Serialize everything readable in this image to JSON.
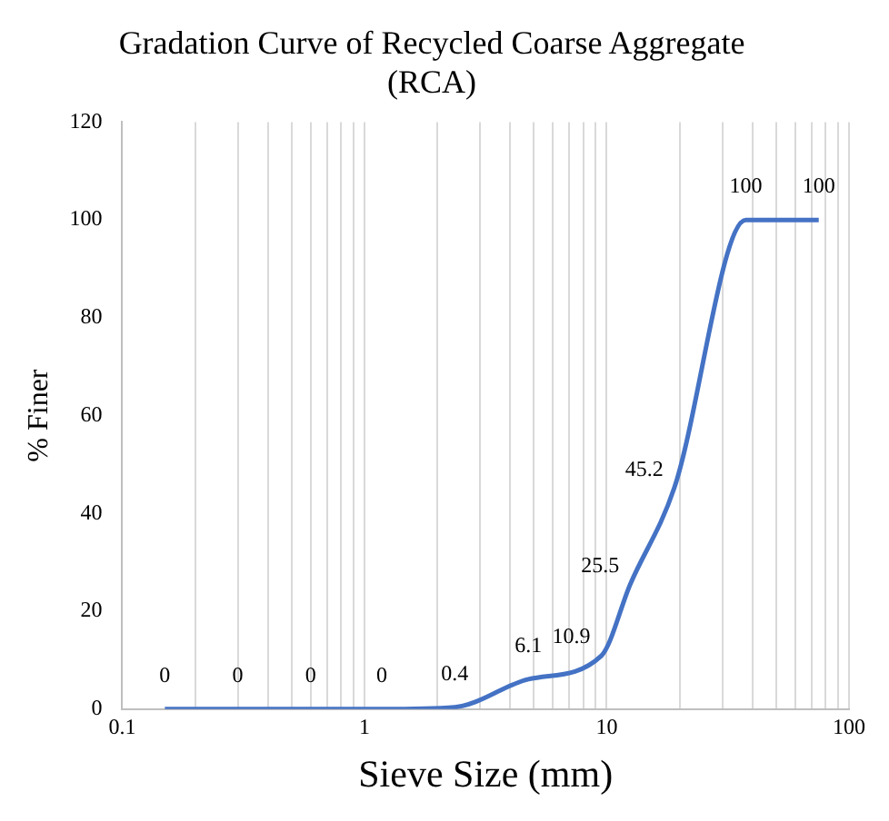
{
  "chart_data": {
    "type": "line",
    "title": "Gradation Curve of Recycled Coarse Aggregate (RCA)",
    "xlabel": "Sieve Size (mm)",
    "ylabel": "% Finer",
    "x": [
      0.15,
      0.3,
      0.6,
      1.18,
      2.36,
      4.75,
      9.5,
      12.5,
      19,
      37.5,
      75
    ],
    "series": [
      {
        "color": "#4472c4",
        "values": [
          0,
          0,
          0,
          0,
          0.4,
          6.1,
          10.9,
          25.5,
          45.2,
          100,
          100
        ]
      }
    ],
    "log": "x",
    "xlim": [
      0.1,
      100
    ],
    "ylim": [
      0,
      120
    ],
    "xticks": [
      0.1,
      {
        "value": 0.2,
        "label": null
      },
      {
        "value": 0.3,
        "label": null
      },
      {
        "value": 0.4,
        "label": null
      },
      {
        "value": 0.5,
        "label": null
      },
      {
        "value": 0.6,
        "label": null
      },
      {
        "value": 0.7,
        "label": null
      },
      {
        "value": 0.8,
        "label": null
      },
      {
        "value": 0.9,
        "label": null
      },
      1,
      {
        "value": 2,
        "label": null
      },
      {
        "value": 3,
        "label": null
      },
      {
        "value": 4,
        "label": null
      },
      {
        "value": 5,
        "label": null
      },
      {
        "value": 6,
        "label": null
      },
      {
        "value": 7,
        "label": null
      },
      {
        "value": 8,
        "label": null
      },
      {
        "value": 9,
        "label": null
      },
      10,
      {
        "value": 20,
        "label": null
      },
      {
        "value": 30,
        "label": null
      },
      {
        "value": 40,
        "label": null
      },
      {
        "value": 50,
        "label": null
      },
      {
        "value": 60,
        "label": null
      },
      {
        "value": 70,
        "label": null
      },
      {
        "value": 80,
        "label": null
      },
      {
        "value": 90,
        "label": null
      },
      100
    ],
    "yticks": [
      0,
      20,
      40,
      60,
      80,
      100,
      120
    ],
    "grid": "x",
    "legend": false,
    "marker": "none",
    "line_style": "solid",
    "data_labels": true
  }
}
